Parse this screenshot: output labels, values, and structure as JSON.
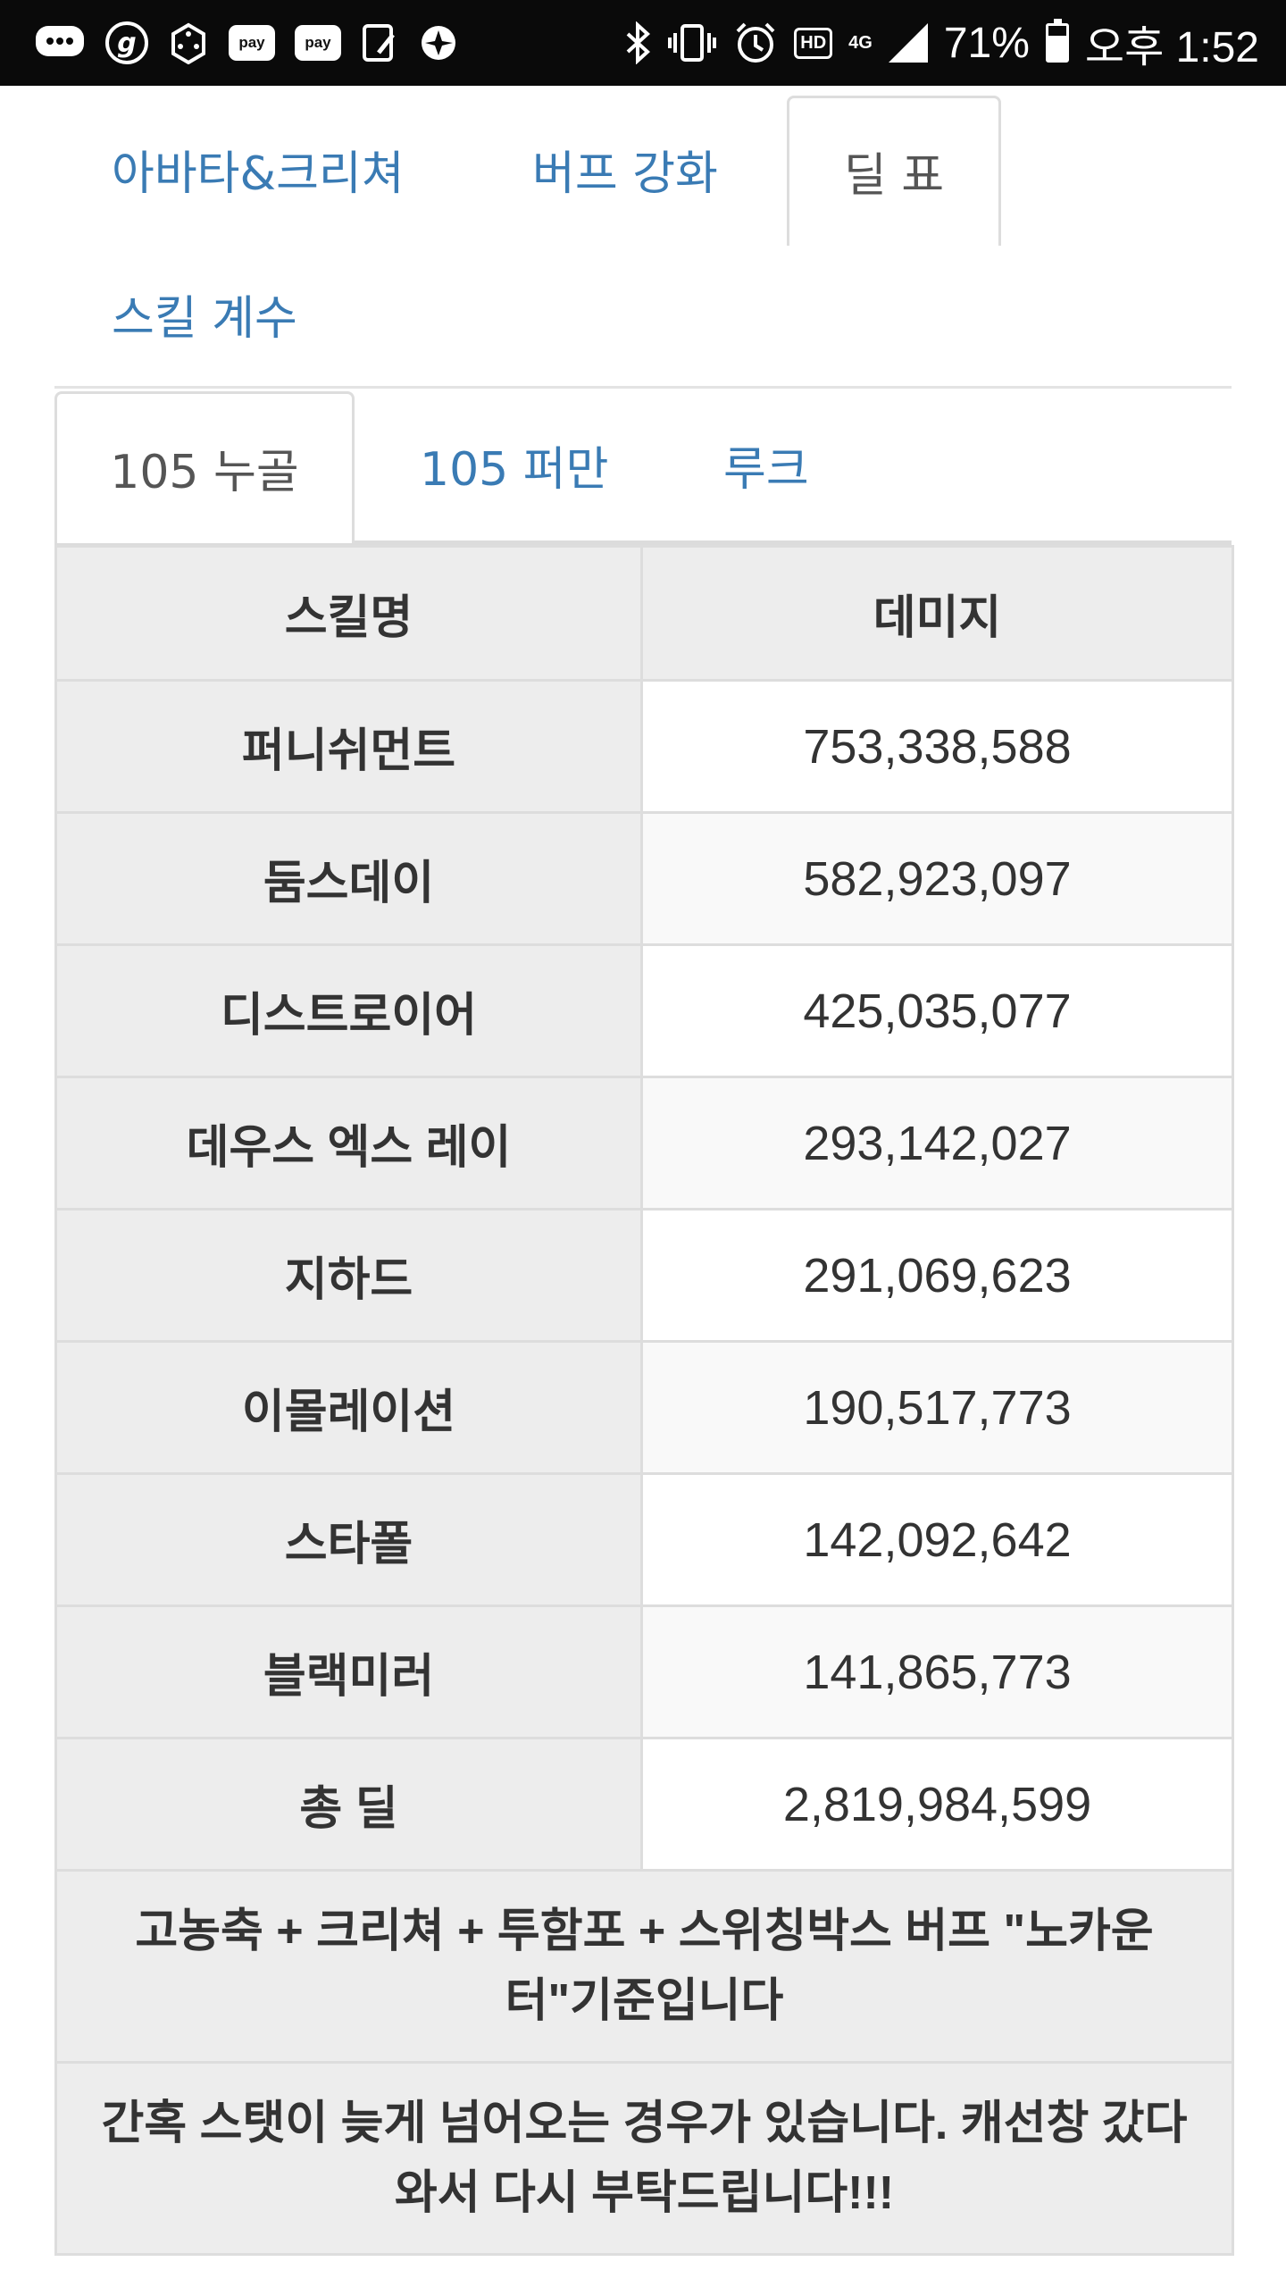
{
  "status_bar": {
    "time": "오후 1:52",
    "battery": "71%",
    "battery_level": 0.71,
    "network": "4G",
    "hd_badge": "HD",
    "pay1": "pay",
    "pay2": "pay",
    "g_app": "g"
  },
  "main_tabs": [
    {
      "label": "아바타&크리쳐",
      "active": false
    },
    {
      "label": "버프 강화",
      "active": false
    },
    {
      "label": "딜 표",
      "active": true
    },
    {
      "label": "스킬 계수",
      "active": false
    }
  ],
  "sub_tabs": [
    {
      "label": "105 누골",
      "active": true
    },
    {
      "label": "105 퍼만",
      "active": false
    },
    {
      "label": "루크",
      "active": false
    }
  ],
  "table": {
    "headers": [
      "스킬명",
      "데미지"
    ],
    "rows": [
      {
        "skill": "퍼니쉬먼트",
        "damage": "753,338,588"
      },
      {
        "skill": "둠스데이",
        "damage": "582,923,097"
      },
      {
        "skill": "디스트로이어",
        "damage": "425,035,077"
      },
      {
        "skill": "데우스 엑스 레이",
        "damage": "293,142,027"
      },
      {
        "skill": "지하드",
        "damage": "291,069,623"
      },
      {
        "skill": "이몰레이션",
        "damage": "190,517,773"
      },
      {
        "skill": "스타폴",
        "damage": "142,092,642"
      },
      {
        "skill": "블랙미러",
        "damage": "141,865,773"
      },
      {
        "skill": "총 딜",
        "damage": "2,819,984,599"
      }
    ],
    "notes": [
      "고농축 + 크리쳐 + 투함포 + 스위칭박스 버프 \"노카운터\"기준입니다",
      "간혹 스탯이 늦게 넘어오는 경우가 있습니다. 캐선창 갔다와서 다시 부탁드립니다!!!"
    ]
  }
}
